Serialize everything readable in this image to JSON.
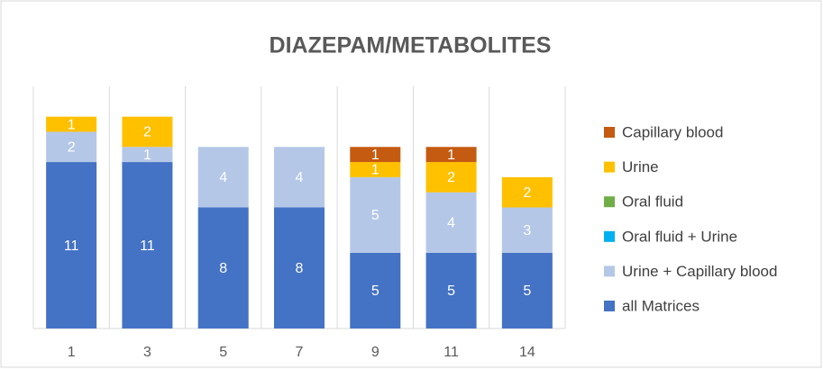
{
  "chart_data": {
    "type": "bar",
    "stacked": true,
    "title": "DIAZEPAM/METABOLITES",
    "categories": [
      "1",
      "3",
      "5",
      "7",
      "9",
      "11",
      "14"
    ],
    "series": [
      {
        "name": "all Matrices",
        "color": "#4472c4",
        "values": [
          11,
          11,
          8,
          8,
          5,
          5,
          5
        ]
      },
      {
        "name": "Urine + Capillary blood",
        "color": "#b4c7e7",
        "values": [
          2,
          1,
          4,
          4,
          5,
          4,
          3
        ]
      },
      {
        "name": "Oral fluid + Urine",
        "color": "#00b0f0",
        "values": [
          null,
          null,
          null,
          null,
          null,
          null,
          null
        ]
      },
      {
        "name": "Oral fluid",
        "color": "#70ad47",
        "values": [
          null,
          null,
          null,
          null,
          null,
          null,
          null
        ]
      },
      {
        "name": "Urine",
        "color": "#ffc000",
        "values": [
          1,
          2,
          null,
          null,
          1,
          2,
          2
        ]
      },
      {
        "name": "Capillary blood",
        "color": "#c55a11",
        "values": [
          null,
          null,
          null,
          null,
          1,
          1,
          null
        ]
      }
    ],
    "ylim": [
      0,
      16
    ],
    "legend": "right"
  }
}
